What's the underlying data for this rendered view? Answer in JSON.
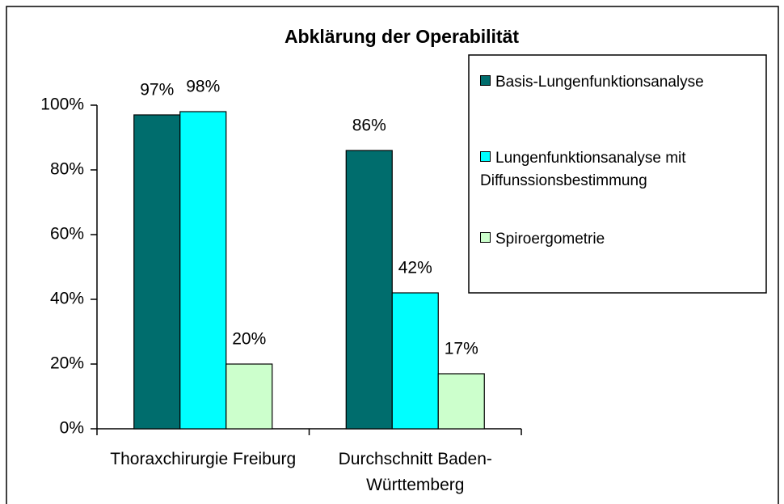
{
  "chart_data": {
    "type": "bar",
    "title": "Abklärung der Operabilität",
    "categories": [
      "Thoraxchirurgie Freiburg",
      "Durchschnitt Baden-Württemberg"
    ],
    "series": [
      {
        "name": "Basis-Lungenfunktionsanalyse",
        "color": "#006d6d",
        "values": [
          97,
          86
        ],
        "value_labels": [
          "97%",
          "86%"
        ]
      },
      {
        "name": "Lungenfunktionsanalyse mit Diffunssionsbestimmung",
        "color": "#00ffff",
        "values": [
          98,
          42
        ],
        "value_labels": [
          "98%",
          "42%"
        ]
      },
      {
        "name": "Spiroergometrie",
        "color": "#ccffcc",
        "values": [
          20,
          17
        ],
        "value_labels": [
          "20%",
          "17%"
        ]
      }
    ],
    "ylim": [
      0,
      100
    ],
    "yticks": [
      {
        "value": 0,
        "label": "0%"
      },
      {
        "value": 20,
        "label": "20%"
      },
      {
        "value": 40,
        "label": "40%"
      },
      {
        "value": 60,
        "label": "60%"
      },
      {
        "value": 80,
        "label": "80%"
      },
      {
        "value": 100,
        "label": "100%"
      }
    ],
    "legend": "right"
  }
}
